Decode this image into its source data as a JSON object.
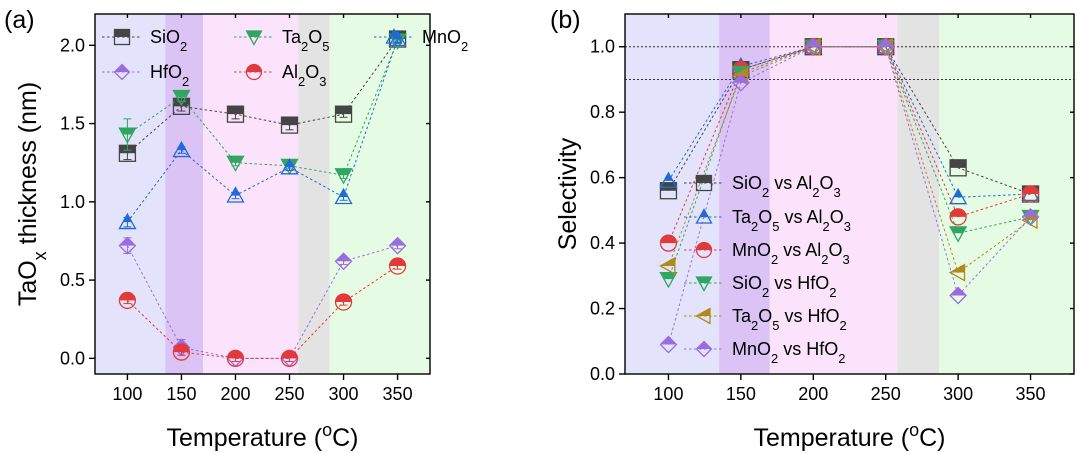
{
  "chart_data": [
    {
      "type": "line",
      "panel_label": "(a)",
      "xlabel": "Temperature (°C)",
      "xlabel_main": "Temperature (",
      "xlabel_sup": "o",
      "xlabel_tail": "C)",
      "ylabel_main": "TaO",
      "ylabel_sub": "x",
      "ylabel_tail": " thickness (nm)",
      "x": [
        100,
        150,
        200,
        250,
        300,
        350
      ],
      "xlim": [
        70,
        380
      ],
      "ylim": [
        -0.1,
        2.2
      ],
      "xticks": [
        100,
        150,
        200,
        250,
        300,
        350
      ],
      "yticks": [
        0.0,
        0.5,
        1.0,
        1.5,
        2.0
      ],
      "ytick_labels": [
        "0.0",
        "0.5",
        "1.0",
        "1.5",
        "2.0"
      ],
      "grid": false,
      "legend_position": "top",
      "bands": [
        {
          "from": 70,
          "to": 135,
          "color": "#e3e4fb"
        },
        {
          "from": 135,
          "to": 170,
          "color": "#dcc3f6"
        },
        {
          "from": 170,
          "to": 258,
          "color": "#fbe3fb"
        },
        {
          "from": 258,
          "to": 287,
          "color": "#e3e3e3"
        },
        {
          "from": 287,
          "to": 380,
          "color": "#e6fbe3"
        }
      ],
      "ref_lines": [],
      "series": [
        {
          "name": "SiO2",
          "label_main": "SiO",
          "label_sub": "2",
          "marker": "square",
          "color": "#454545",
          "values": [
            1.31,
            1.61,
            1.56,
            1.49,
            1.56,
            2.04
          ],
          "errors": [
            0.04,
            0.03,
            0.03,
            0.03,
            0.02,
            0.02
          ]
        },
        {
          "name": "Ta2O5",
          "label_main": "Ta",
          "label_sub": "2",
          "label_main2": "O",
          "label_sub2": "5",
          "marker": "triangle-down",
          "color": "#2fa661",
          "values": [
            1.43,
            1.67,
            1.25,
            1.23,
            1.17,
            2.03
          ],
          "errors": [
            0.1,
            0.03,
            0.02,
            0.02,
            0.02,
            0.02
          ]
        },
        {
          "name": "MnO2",
          "label_main": "MnO",
          "label_sub": "2",
          "marker": "triangle-up",
          "color": "#1f6ad6",
          "values": [
            0.87,
            1.33,
            1.04,
            1.22,
            1.03,
            2.04
          ],
          "errors": [
            0.03,
            0.02,
            0.02,
            0.02,
            0.02,
            0.02
          ]
        },
        {
          "name": "HfO2",
          "label_main": "HfO",
          "label_sub": "2",
          "marker": "diamond",
          "color": "#9b6be0",
          "values": [
            0.72,
            0.07,
            0.0,
            0.0,
            0.62,
            0.72
          ],
          "errors": [
            0.05,
            0.05,
            0.02,
            0.02,
            0.02,
            0.02
          ]
        },
        {
          "name": "Al2O3",
          "label_main": "Al",
          "label_sub": "2",
          "label_main2": "O",
          "label_sub2": "3",
          "marker": "circle",
          "color": "#e23a3a",
          "values": [
            0.37,
            0.04,
            0.0,
            0.0,
            0.36,
            0.59
          ],
          "errors": [
            0.02,
            0.02,
            0.02,
            0.02,
            0.02,
            0.02
          ]
        }
      ]
    },
    {
      "type": "line",
      "panel_label": "(b)",
      "xlabel": "Temperature (°C)",
      "xlabel_main": "Temperature (",
      "xlabel_sup": "o",
      "xlabel_tail": "C)",
      "ylabel_main": "Selectivity",
      "ylabel_sub": "",
      "ylabel_tail": "",
      "x": [
        100,
        150,
        200,
        250,
        300,
        350
      ],
      "xlim": [
        70,
        380
      ],
      "ylim": [
        0.0,
        1.1
      ],
      "xticks": [
        100,
        150,
        200,
        250,
        300,
        350
      ],
      "yticks": [
        0.0,
        0.2,
        0.4,
        0.6,
        0.8,
        1.0
      ],
      "ytick_labels": [
        "0.0",
        "0.2",
        "0.4",
        "0.6",
        "0.8",
        "1.0"
      ],
      "grid": false,
      "legend_position": "center-left",
      "bands": [
        {
          "from": 70,
          "to": 135,
          "color": "#e3e4fb"
        },
        {
          "from": 135,
          "to": 170,
          "color": "#dcc3f6"
        },
        {
          "from": 170,
          "to": 258,
          "color": "#fbe3fb"
        },
        {
          "from": 258,
          "to": 287,
          "color": "#e3e3e3"
        },
        {
          "from": 287,
          "to": 380,
          "color": "#e6fbe3"
        }
      ],
      "ref_lines": [
        1.0,
        0.9
      ],
      "series": [
        {
          "name": "SiO2 vs Al2O3",
          "label_main": "SiO",
          "label_sub": "2",
          "label_main2": " vs Al",
          "label_sub2": "2",
          "label_main3": "O",
          "label_sub3": "3",
          "marker": "square",
          "color": "#454545",
          "values": [
            0.56,
            0.93,
            1.0,
            1.0,
            0.63,
            0.55
          ]
        },
        {
          "name": "Ta2O5 vs Al2O3",
          "label_main": "Ta",
          "label_sub": "2",
          "label_main2": "O",
          "label_sub2": "5",
          "label_main3": " vs Al",
          "label_sub3": "2",
          "label_main4": "O",
          "label_sub4": "3",
          "marker": "triangle-up",
          "color": "#1f6ad6",
          "values": [
            0.59,
            0.94,
            1.0,
            1.0,
            0.54,
            0.55
          ]
        },
        {
          "name": "MnO2 vs Al2O3",
          "label_main": "MnO",
          "label_sub": "2",
          "label_main2": " vs Al",
          "label_sub2": "2",
          "label_main3": "O",
          "label_sub3": "3",
          "marker": "circle",
          "color": "#e23a3a",
          "values": [
            0.4,
            0.93,
            1.0,
            1.0,
            0.48,
            0.55
          ]
        },
        {
          "name": "SiO2 vs HfO2",
          "label_main": "SiO",
          "label_sub": "2",
          "label_main2": " vs HfO",
          "label_sub2": "2",
          "marker": "triangle-down",
          "color": "#2fa661",
          "values": [
            0.29,
            0.92,
            1.0,
            1.0,
            0.43,
            0.48
          ]
        },
        {
          "name": "Ta2O5 vs HfO2",
          "label_main": "Ta",
          "label_sub": "2",
          "label_main2": "O",
          "label_sub2": "5",
          "label_main3": " vs HfO",
          "label_sub3": "2",
          "marker": "triangle-left",
          "color": "#b08a1a",
          "values": [
            0.33,
            0.91,
            1.0,
            1.0,
            0.31,
            0.47
          ]
        },
        {
          "name": "MnO2 vs HfO2",
          "label_main": "MnO",
          "label_sub": "2",
          "label_main2": " vs HfO",
          "label_sub2": "2",
          "marker": "diamond",
          "color": "#9b6be0",
          "values": [
            0.09,
            0.89,
            1.0,
            1.0,
            0.24,
            0.48
          ]
        }
      ]
    }
  ]
}
